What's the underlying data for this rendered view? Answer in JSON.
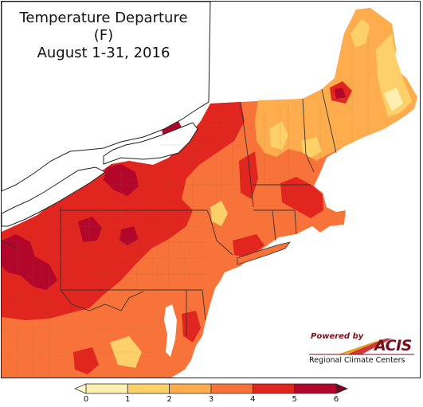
{
  "title": {
    "line1": "Temperature Departure (F)",
    "line2": "August 1-31, 2016"
  },
  "logo": {
    "powered_by": "Powered by",
    "brand": "ACIS",
    "subtitle": "Regional Climate Centers"
  },
  "legend": {
    "ticks": [
      "0",
      "1",
      "2",
      "3",
      "4",
      "5",
      "6"
    ],
    "bins": [
      {
        "range": "0-1",
        "color": "#ffefb0"
      },
      {
        "range": "1-2",
        "color": "#fed06a"
      },
      {
        "range": "2-3",
        "color": "#fdad4e"
      },
      {
        "range": "3-4",
        "color": "#f8733a"
      },
      {
        "range": "4-5",
        "color": "#e1251f"
      },
      {
        "range": "5-6",
        "color": "#b2072a"
      }
    ],
    "low_arrow_color": "#ffffd0",
    "high_arrow_color": "#7d0024"
  },
  "colors": {
    "water": "#ffffff",
    "boundary": "#333333",
    "county_lines": "#9a6a40"
  }
}
